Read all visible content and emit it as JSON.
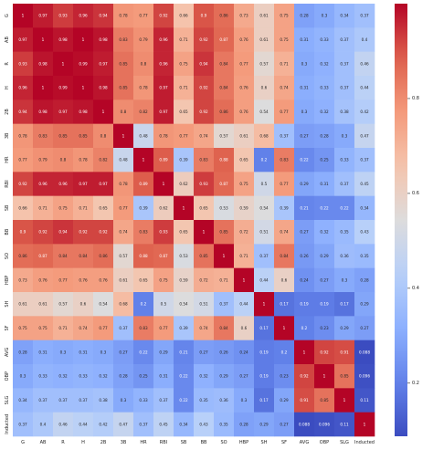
{
  "chart_data": {
    "type": "heatmap",
    "title": "",
    "xlabel": "",
    "ylabel": "",
    "labels": [
      "G",
      "AB",
      "R",
      "H",
      "2B",
      "3B",
      "HR",
      "RBI",
      "SB",
      "BB",
      "SO",
      "HBP",
      "SH",
      "SF",
      "AVG",
      "OBP",
      "SLG",
      "Inducted"
    ],
    "values": [
      [
        1,
        0.97,
        0.93,
        0.96,
        0.94,
        0.78,
        0.77,
        0.92,
        0.66,
        0.9,
        0.86,
        0.73,
        0.61,
        0.75,
        0.28,
        0.3,
        0.34,
        0.37
      ],
      [
        0.97,
        1,
        0.98,
        1,
        0.98,
        0.83,
        0.79,
        0.96,
        0.71,
        0.92,
        0.87,
        0.76,
        0.61,
        0.75,
        0.31,
        0.33,
        0.37,
        0.4
      ],
      [
        0.93,
        0.98,
        1,
        0.99,
        0.97,
        0.85,
        0.8,
        0.96,
        0.75,
        0.94,
        0.84,
        0.77,
        0.57,
        0.71,
        0.3,
        0.32,
        0.37,
        0.46
      ],
      [
        0.96,
        1,
        0.99,
        1,
        0.98,
        0.85,
        0.78,
        0.97,
        0.71,
        0.92,
        0.84,
        0.76,
        0.6,
        0.74,
        0.31,
        0.33,
        0.37,
        0.44
      ],
      [
        0.94,
        0.98,
        0.97,
        0.98,
        1,
        0.8,
        0.82,
        0.97,
        0.65,
        0.92,
        0.86,
        0.76,
        0.54,
        0.77,
        0.3,
        0.32,
        0.38,
        0.42
      ],
      [
        0.78,
        0.83,
        0.85,
        0.85,
        0.8,
        1,
        0.48,
        0.78,
        0.77,
        0.74,
        0.57,
        0.61,
        0.68,
        0.37,
        0.27,
        0.28,
        0.3,
        0.47
      ],
      [
        0.77,
        0.79,
        0.8,
        0.78,
        0.82,
        0.48,
        1,
        0.89,
        0.39,
        0.83,
        0.88,
        0.65,
        0.2,
        0.83,
        0.22,
        0.25,
        0.33,
        0.37
      ],
      [
        0.92,
        0.96,
        0.96,
        0.97,
        0.97,
        0.78,
        0.89,
        1,
        0.62,
        0.93,
        0.87,
        0.75,
        0.5,
        0.77,
        0.29,
        0.31,
        0.37,
        0.45
      ],
      [
        0.66,
        0.71,
        0.75,
        0.71,
        0.65,
        0.77,
        0.39,
        0.62,
        1,
        0.65,
        0.53,
        0.59,
        0.54,
        0.39,
        0.21,
        0.22,
        0.22,
        0.34
      ],
      [
        0.9,
        0.92,
        0.94,
        0.92,
        0.92,
        0.74,
        0.83,
        0.93,
        0.65,
        1,
        0.85,
        0.72,
        0.51,
        0.74,
        0.27,
        0.32,
        0.35,
        0.43
      ],
      [
        0.86,
        0.87,
        0.84,
        0.84,
        0.86,
        0.57,
        0.88,
        0.87,
        0.53,
        0.85,
        1,
        0.71,
        0.37,
        0.84,
        0.26,
        0.29,
        0.36,
        0.35
      ],
      [
        0.73,
        0.76,
        0.77,
        0.76,
        0.76,
        0.61,
        0.65,
        0.75,
        0.59,
        0.72,
        0.71,
        1,
        0.44,
        0.6,
        0.24,
        0.27,
        0.3,
        0.28
      ],
      [
        0.61,
        0.61,
        0.57,
        0.6,
        0.54,
        0.68,
        0.2,
        0.5,
        0.54,
        0.51,
        0.37,
        0.44,
        1,
        0.17,
        0.19,
        0.19,
        0.17,
        0.29
      ],
      [
        0.75,
        0.75,
        0.71,
        0.74,
        0.77,
        0.37,
        0.83,
        0.77,
        0.39,
        0.74,
        0.84,
        0.6,
        0.17,
        1,
        0.2,
        0.23,
        0.29,
        0.27
      ],
      [
        0.28,
        0.31,
        0.3,
        0.31,
        0.3,
        0.27,
        0.22,
        0.29,
        0.21,
        0.27,
        0.26,
        0.24,
        0.19,
        0.2,
        1,
        0.92,
        0.91,
        0.088
      ],
      [
        0.3,
        0.33,
        0.32,
        0.33,
        0.32,
        0.28,
        0.25,
        0.31,
        0.22,
        0.32,
        0.29,
        0.27,
        0.19,
        0.23,
        0.92,
        1,
        0.85,
        0.096
      ],
      [
        0.34,
        0.37,
        0.37,
        0.37,
        0.38,
        0.3,
        0.33,
        0.37,
        0.22,
        0.35,
        0.36,
        0.3,
        0.17,
        0.29,
        0.91,
        0.85,
        1,
        0.11
      ],
      [
        0.37,
        0.4,
        0.46,
        0.44,
        0.42,
        0.47,
        0.37,
        0.45,
        0.34,
        0.43,
        0.35,
        0.28,
        0.29,
        0.27,
        0.088,
        0.096,
        0.11,
        1
      ]
    ],
    "color_scale": {
      "min": 0.088,
      "max": 1,
      "colormap": "coolwarm",
      "low_color": "#3b4cc0",
      "mid_color": "#dddcdc",
      "high_color": "#b40426"
    },
    "colorbar_ticks": [
      0.2,
      0.4,
      0.6,
      0.8
    ],
    "legend": "colorbar-right",
    "annotated": true
  }
}
